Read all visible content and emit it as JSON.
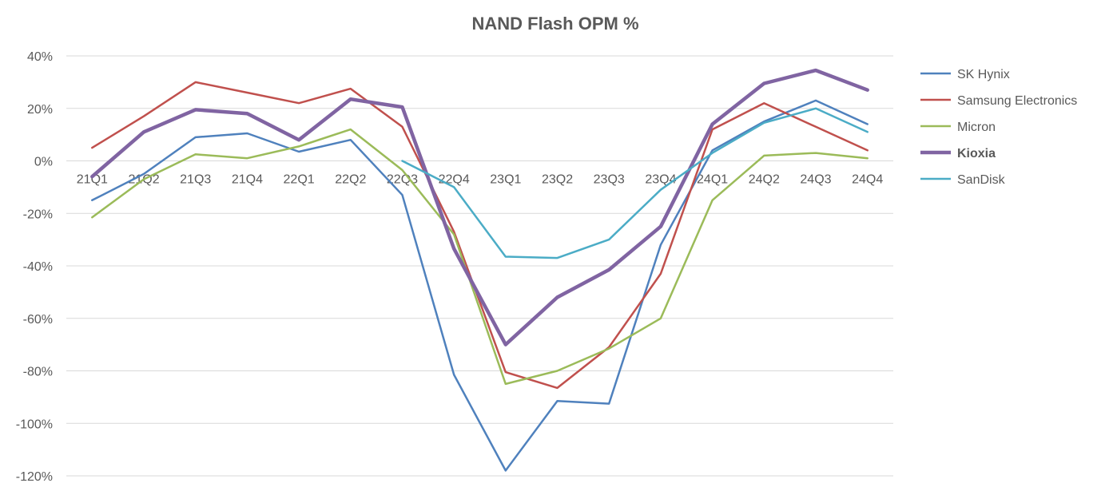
{
  "chart_data": {
    "type": "line",
    "title": "NAND Flash OPM %",
    "xlabel": "",
    "ylabel": "",
    "categories": [
      "21Q1",
      "21Q2",
      "21Q3",
      "21Q4",
      "22Q1",
      "22Q2",
      "22Q3",
      "22Q4",
      "23Q1",
      "23Q2",
      "23Q3",
      "23Q4",
      "24Q1",
      "24Q2",
      "24Q3",
      "24Q4"
    ],
    "ylim": [
      -120,
      40
    ],
    "yticks": [
      40,
      20,
      0,
      -20,
      -40,
      -60,
      -80,
      -100,
      -120
    ],
    "ytick_labels": [
      "40%",
      "20%",
      "0%",
      "-20%",
      "-40%",
      "-60%",
      "-80%",
      "-100%",
      "-120%"
    ],
    "grid": true,
    "legend_position": "right",
    "series": [
      {
        "name": "SK Hynix",
        "color": "#4f81bd",
        "bold": false,
        "values": [
          -15,
          -5,
          9,
          10.5,
          3.5,
          8,
          -13,
          -81.5,
          -118,
          -91.5,
          -92.5,
          -32,
          4,
          15,
          23,
          14
        ]
      },
      {
        "name": "Samsung Electronics",
        "color": "#c0504d",
        "bold": false,
        "values": [
          5,
          17,
          30,
          26,
          22,
          27.5,
          13,
          -27,
          -80.5,
          -86.5,
          -71,
          -43,
          12,
          22,
          13,
          4
        ]
      },
      {
        "name": "Micron",
        "color": "#9bbb59",
        "bold": false,
        "values": [
          -21.5,
          -7,
          2.5,
          1,
          5.5,
          12,
          -3.5,
          -28,
          -85,
          -80,
          -71.5,
          -60,
          -15,
          2,
          3,
          1
        ]
      },
      {
        "name": "Kioxia",
        "color": "#8064a2",
        "bold": true,
        "values": [
          -6,
          11,
          19.5,
          18,
          8,
          23.5,
          20.5,
          -33.5,
          -70,
          -52,
          -41.5,
          -25,
          14,
          29.5,
          34.5,
          27
        ]
      },
      {
        "name": "SanDisk",
        "color": "#4bacc6",
        "bold": false,
        "values": [
          null,
          null,
          null,
          null,
          null,
          null,
          0,
          -10,
          -36.5,
          -37,
          -30,
          -11,
          3,
          14.5,
          20,
          11
        ]
      }
    ]
  }
}
